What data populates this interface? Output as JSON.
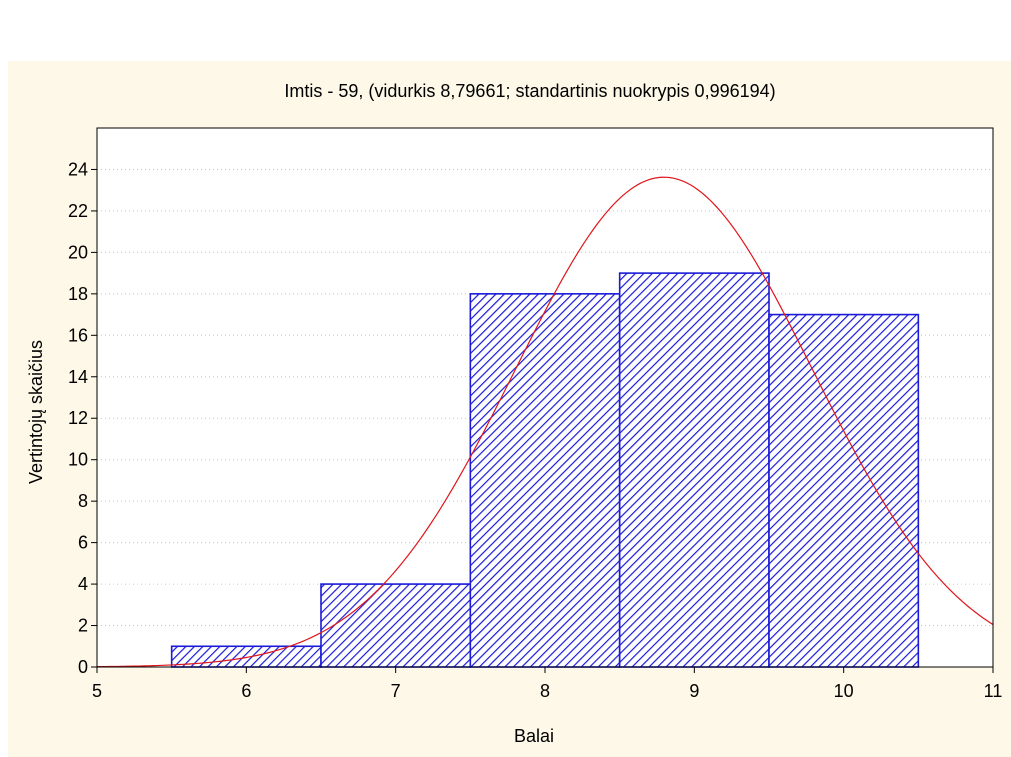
{
  "chart_data": {
    "type": "bar",
    "title": "Imtis - 59, (vidurkis 8,79661; standartinis nuokrypis 0,996194)",
    "xlabel": "Balai",
    "ylabel": "Vertintojų skaičius",
    "bins": [
      {
        "from": 5.5,
        "to": 6.5,
        "value": 1
      },
      {
        "from": 6.5,
        "to": 7.5,
        "value": 4
      },
      {
        "from": 7.5,
        "to": 8.5,
        "value": 18
      },
      {
        "from": 8.5,
        "to": 9.5,
        "value": 19
      },
      {
        "from": 9.5,
        "to": 10.5,
        "value": 17
      }
    ],
    "normal_curve": {
      "n": 59,
      "mean": 8.79661,
      "sd": 0.996194,
      "bin_width": 1
    },
    "xlim": [
      5,
      11
    ],
    "ylim": [
      0,
      26
    ],
    "x_ticks": [
      "5",
      "6",
      "7",
      "8",
      "9",
      "10",
      "11"
    ],
    "y_ticks": [
      "0",
      "2",
      "4",
      "6",
      "8",
      "10",
      "12",
      "14",
      "16",
      "18",
      "20",
      "22",
      "24"
    ],
    "grid": "horizontal dotted",
    "colors": {
      "page_background": "#fdf8e8",
      "plot_background": "#ffffff",
      "bar_edge": "#1a1ad8",
      "bar_hatch": "#1a1ad8",
      "curve": "#e0161c",
      "grid": "#c8c8c8"
    }
  }
}
